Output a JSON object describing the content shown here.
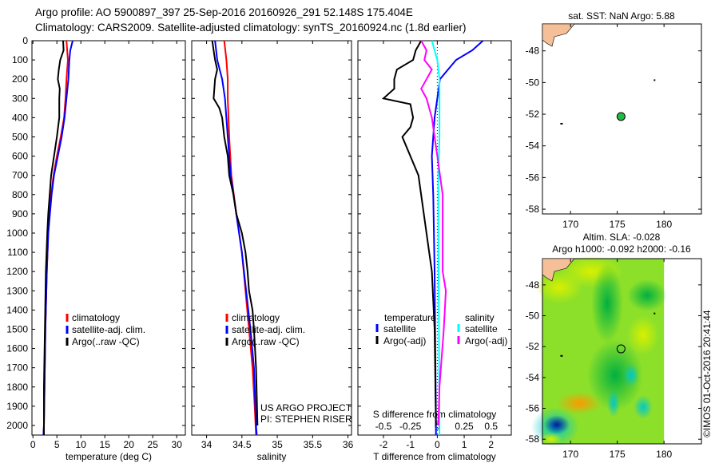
{
  "header": {
    "line1": "Argo profile: AO 5900897_397 25-Sep-2016 20160926_291 52.148S 175.404E",
    "line2": "Climatology: CARS2009. Satellite-adjusted climatology: synTS_20160924.nc (1.8d earlier)"
  },
  "chart_data": [
    {
      "type": "line",
      "name": "temperature",
      "xlabel": "temperature (deg C)",
      "ylabel": "",
      "xlim": [
        -0.2,
        31.8
      ],
      "ylim": [
        2050,
        0
      ],
      "xticks": [
        0,
        5,
        10,
        15,
        20,
        25,
        30
      ],
      "yticks": [
        0,
        100,
        200,
        300,
        400,
        500,
        600,
        700,
        800,
        900,
        1000,
        1100,
        1200,
        1300,
        1400,
        1500,
        1600,
        1700,
        1800,
        1900,
        2000
      ],
      "legend": [
        "climatology",
        "satellite-adj. clim.",
        "Argo(..raw -QC)"
      ],
      "series": [
        {
          "name": "climatology",
          "color": "#ff0000",
          "depth": [
            0,
            100,
            200,
            300,
            400,
            500,
            600,
            700,
            800,
            1000,
            1200,
            1500,
            2000,
            2050
          ],
          "values": [
            7,
            7.3,
            7,
            6.8,
            6.5,
            5.8,
            5,
            4.3,
            3.8,
            3.2,
            2.9,
            2.6,
            2.3,
            2.2
          ]
        },
        {
          "name": "satellite-adj. clim.",
          "color": "#0000ff",
          "depth": [
            0,
            50,
            100,
            200,
            300,
            400,
            500,
            600,
            700,
            800,
            1000,
            1200,
            1500,
            2000,
            2050
          ],
          "values": [
            8.3,
            7.8,
            7.6,
            7.4,
            7,
            6.6,
            6,
            5.2,
            4.4,
            3.9,
            3.2,
            2.9,
            2.6,
            2.3,
            2.2
          ]
        },
        {
          "name": "Argo(..raw -QC)",
          "color": "#000000",
          "depth": [
            0,
            50,
            100,
            150,
            200,
            250,
            300,
            400,
            500,
            600,
            700,
            800,
            900,
            1000,
            1200,
            1500,
            1800,
            2050
          ],
          "values": [
            6.3,
            6.4,
            5.7,
            5.4,
            5.2,
            5.6,
            5.5,
            5.5,
            5,
            4.4,
            3.8,
            3.5,
            3.2,
            3,
            2.7,
            2.5,
            2.3,
            2.3
          ]
        }
      ]
    },
    {
      "type": "line",
      "name": "salinity",
      "xlabel": "salinity",
      "xlim": [
        33.79,
        36.05
      ],
      "ylim": [
        2050,
        0
      ],
      "xticks": [
        34,
        34.5,
        35,
        35.5,
        36
      ],
      "legend": [
        "climatology",
        "satellite-adj. clim.",
        "Argo(..raw -QC)"
      ],
      "annotation": [
        "US ARGO PROJECT",
        "PI: STEPHEN RISER"
      ],
      "series": [
        {
          "name": "climatology",
          "color": "#ff0000",
          "depth": [
            0,
            100,
            200,
            300,
            500,
            700,
            900,
            1100,
            1300,
            1500,
            1700,
            1900,
            2050
          ],
          "values": [
            34.25,
            34.28,
            34.3,
            34.3,
            34.32,
            34.35,
            34.42,
            34.5,
            34.55,
            34.6,
            34.65,
            34.68,
            34.7
          ]
        },
        {
          "name": "satellite-adj. clim.",
          "color": "#0000ff",
          "depth": [
            0,
            100,
            200,
            300,
            500,
            700,
            900,
            1100,
            1300,
            1500,
            1700,
            2000,
            2050
          ],
          "values": [
            34.12,
            34.15,
            34.22,
            34.26,
            34.3,
            34.34,
            34.42,
            34.5,
            34.56,
            34.62,
            34.67,
            34.7,
            34.71
          ]
        },
        {
          "name": "Argo(..raw -QC)",
          "color": "#000000",
          "depth": [
            0,
            50,
            100,
            150,
            200,
            300,
            350,
            400,
            500,
            600,
            700,
            800,
            900,
            1000,
            1100,
            1200,
            1300,
            1400,
            1500,
            1700,
            2000
          ],
          "values": [
            34.08,
            34.1,
            34.12,
            34.15,
            34.12,
            34.1,
            34.18,
            34.22,
            34.25,
            34.3,
            34.32,
            34.38,
            34.42,
            34.5,
            34.55,
            34.58,
            34.6,
            34.65,
            34.67,
            34.7,
            34.72
          ]
        }
      ]
    },
    {
      "type": "line",
      "name": "difference",
      "xlabel": "T difference from climatology",
      "x2label": "S difference from climatology",
      "xlim": [
        -2.95,
        2.75
      ],
      "ylim": [
        2050,
        0
      ],
      "xticks": [
        -2,
        -1,
        0,
        1,
        2
      ],
      "x2ticks": [
        "-0.5",
        "-0.25",
        "0",
        "0.25",
        "0.5"
      ],
      "legend": {
        "temperature_title": "temperature",
        "salinity_title": "salinity",
        "t_sat": "satellite",
        "t_argo": "Argo(-adj)",
        "s_sat": "satellite",
        "s_argo": "Argo(-adj)"
      },
      "series": [
        {
          "name": "T satellite",
          "color": "#0000ff",
          "units": "T",
          "depth": [
            0,
            50,
            100,
            150,
            200,
            300,
            400,
            600,
            800,
            1200,
            2000,
            2050
          ],
          "values": [
            1.7,
            1.3,
            0.7,
            0.4,
            0.1,
            0,
            -0.1,
            -0.2,
            -0.15,
            -0.1,
            -0.05,
            -0.05
          ]
        },
        {
          "name": "T Argo(-adj)",
          "color": "#000000",
          "units": "T",
          "depth": [
            0,
            50,
            100,
            150,
            200,
            250,
            300,
            330,
            400,
            450,
            500,
            600,
            700,
            900,
            1200,
            1500,
            2000
          ],
          "values": [
            -0.6,
            -0.8,
            -0.9,
            -1.5,
            -1.6,
            -1.6,
            -2.0,
            -1.0,
            -0.9,
            -1.0,
            -1.3,
            -1.0,
            -0.7,
            -0.5,
            -0.2,
            -0.1,
            -0.05
          ]
        },
        {
          "name": "S satellite",
          "color": "#00ffff",
          "units": "S",
          "depth": [
            0,
            100,
            200,
            300,
            500,
            700,
            1000,
            2000,
            2050
          ],
          "values": [
            -0.05,
            0,
            0.02,
            0.02,
            0.02,
            0.01,
            0.01,
            0.02,
            0.02
          ]
        },
        {
          "name": "S Argo(-adj)",
          "color": "#ff00ff",
          "units": "S",
          "depth": [
            0,
            50,
            100,
            150,
            200,
            250,
            300,
            400,
            600,
            800,
            1000,
            1200,
            1300,
            1500,
            1800,
            2000
          ],
          "values": [
            -0.15,
            -0.1,
            -0.12,
            -0.05,
            -0.1,
            -0.15,
            -0.1,
            -0.05,
            0,
            0.05,
            0.05,
            0.05,
            0.08,
            0.06,
            0.02,
            0.01
          ]
        }
      ]
    },
    {
      "type": "scatter",
      "name": "sst-map",
      "title": "sat. SST: NaN Argo: 5.88",
      "xlim": [
        167,
        184
      ],
      "ylim": [
        -58.3,
        -46.3
      ],
      "xticks": [
        170,
        175,
        180
      ],
      "yticks": [
        -48,
        -50,
        -52,
        -54,
        -56,
        -58
      ],
      "marker": {
        "lon": 175.404,
        "lat": -52.148
      }
    },
    {
      "type": "heatmap",
      "name": "sla-map",
      "title1": "Altim. SLA: -0.028",
      "title2": "Argo h1000: -0.092 h2000: -0.16",
      "xlim": [
        167,
        184
      ],
      "ylim": [
        -58.3,
        -46.3
      ],
      "xticks": [
        170,
        175,
        180
      ],
      "yticks": [
        -48,
        -50,
        -52,
        -54,
        -56,
        -58
      ],
      "marker": {
        "lon": 175.404,
        "lat": -52.148
      },
      "credit": "©IMOS 01-Oct-2016 20:41:44"
    }
  ]
}
